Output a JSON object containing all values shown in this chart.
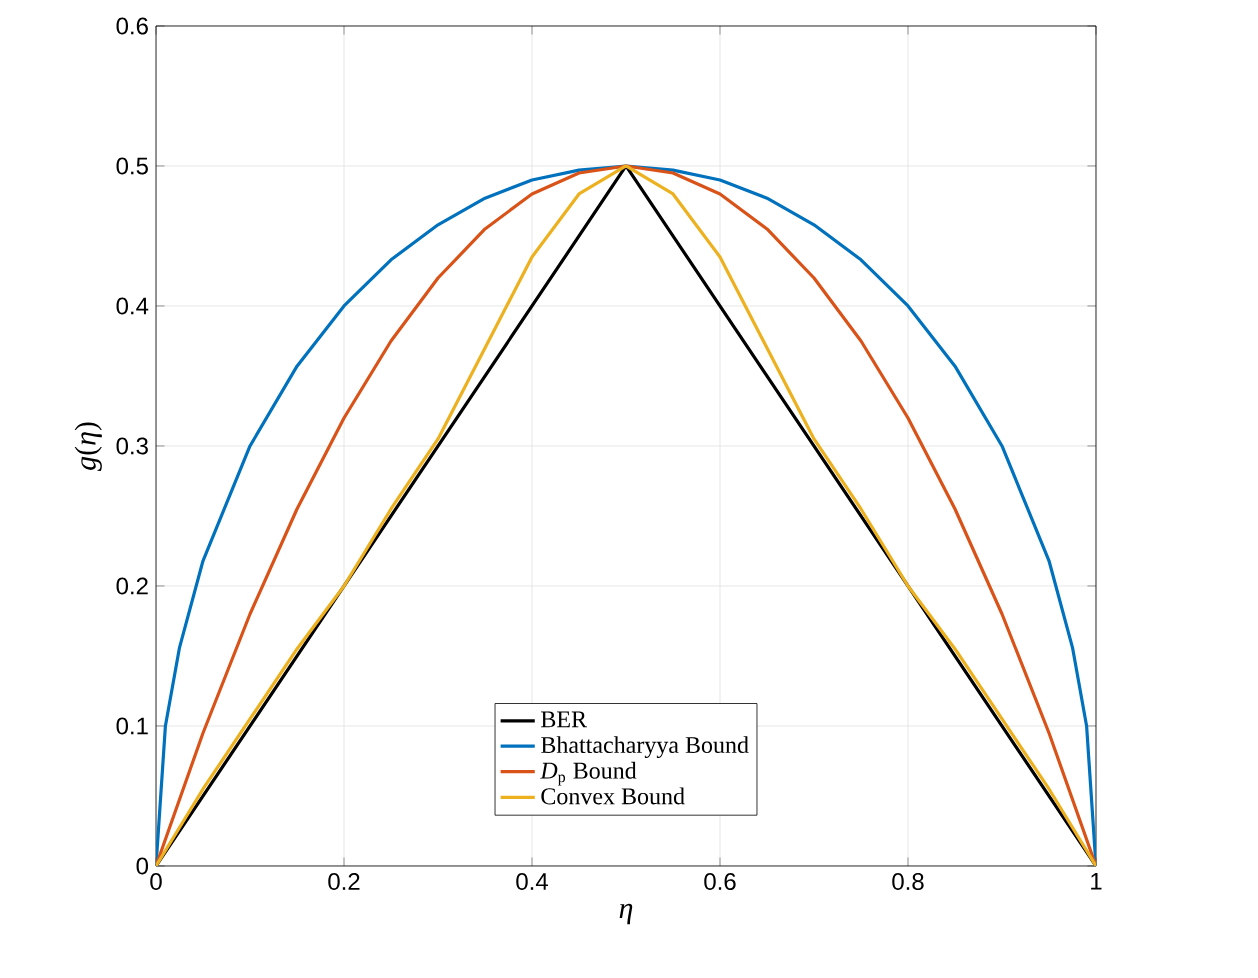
{
  "chart_data": {
    "type": "line",
    "xlabel": "*η*",
    "ylabel": "*g*(*η*)",
    "xlim": [
      0,
      1
    ],
    "ylim": [
      0,
      0.6
    ],
    "xticks": [
      0,
      0.2,
      0.4,
      0.6,
      0.8,
      1
    ],
    "yticks": [
      0,
      0.1,
      0.2,
      0.3,
      0.4,
      0.5,
      0.6
    ],
    "grid": true,
    "legend": "bottom",
    "marker": "none",
    "line_style": "solid",
    "series": [
      {
        "name": "BER",
        "color": "#000000",
        "x": [
          0,
          0.5,
          1
        ],
        "values": [
          0,
          0.5,
          0
        ]
      },
      {
        "name": "Bhattacharyya Bound",
        "color": "#0072bd",
        "x": [
          0,
          0.01,
          0.025,
          0.05,
          0.1,
          0.15,
          0.2,
          0.25,
          0.3,
          0.35,
          0.4,
          0.45,
          0.5,
          0.55,
          0.6,
          0.65,
          0.7,
          0.75,
          0.8,
          0.85,
          0.9,
          0.95,
          0.975,
          0.99,
          1
        ],
        "values": [
          0,
          0.1,
          0.156,
          0.218,
          0.3,
          0.357,
          0.4,
          0.433,
          0.458,
          0.477,
          0.49,
          0.497,
          0.5,
          0.497,
          0.49,
          0.477,
          0.458,
          0.433,
          0.4,
          0.357,
          0.3,
          0.218,
          0.156,
          0.1,
          0
        ]
      },
      {
        "name": "*D*$_{p}$ Bound",
        "color": "#d95319",
        "x": [
          0,
          0.05,
          0.1,
          0.15,
          0.2,
          0.25,
          0.3,
          0.35,
          0.4,
          0.45,
          0.5,
          0.55,
          0.6,
          0.65,
          0.7,
          0.75,
          0.8,
          0.85,
          0.9,
          0.95,
          1
        ],
        "values": [
          0,
          0.095,
          0.18,
          0.255,
          0.32,
          0.375,
          0.42,
          0.455,
          0.48,
          0.495,
          0.5,
          0.495,
          0.48,
          0.455,
          0.42,
          0.375,
          0.32,
          0.255,
          0.18,
          0.095,
          0
        ]
      },
      {
        "name": "Convex Bound",
        "color": "#edb120",
        "x": [
          0,
          0.05,
          0.1,
          0.15,
          0.2,
          0.25,
          0.3,
          0.35,
          0.4,
          0.45,
          0.5,
          0.55,
          0.6,
          0.65,
          0.7,
          0.75,
          0.8,
          0.85,
          0.9,
          0.95,
          1
        ],
        "values": [
          0,
          0.055,
          0.105,
          0.155,
          0.2,
          0.255,
          0.305,
          0.37,
          0.435,
          0.48,
          0.5,
          0.48,
          0.435,
          0.37,
          0.305,
          0.255,
          0.2,
          0.155,
          0.105,
          0.055,
          0
        ]
      }
    ]
  }
}
